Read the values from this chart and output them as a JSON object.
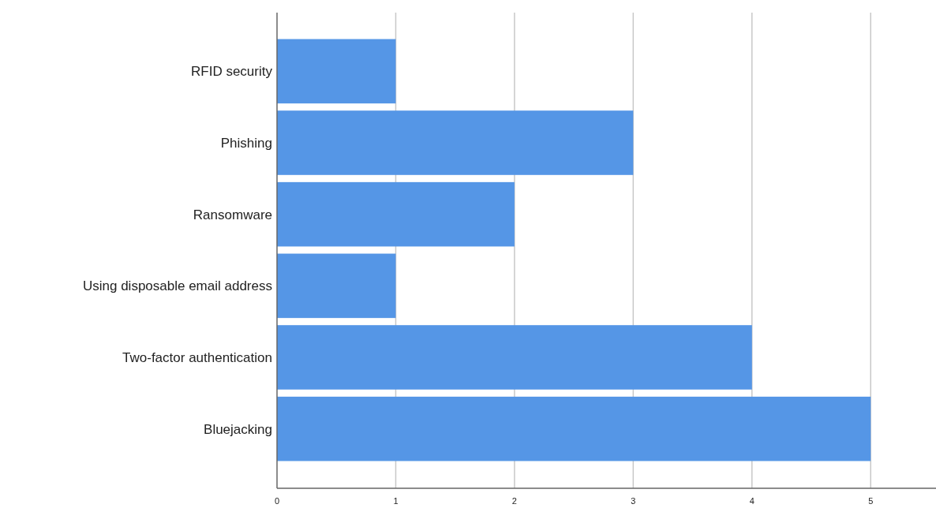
{
  "chart_data": {
    "type": "bar",
    "orientation": "horizontal",
    "categories": [
      "RFID security",
      "Phishing",
      "Ransomware",
      "Using disposable email address",
      "Two-factor authentication",
      "Bluejacking"
    ],
    "values": [
      1,
      3,
      2,
      1,
      4,
      5
    ],
    "color": "#5596e6",
    "xlim": [
      0,
      5.55
    ],
    "xticks": [
      0,
      1,
      2,
      3,
      4,
      5
    ],
    "grid": "x"
  }
}
